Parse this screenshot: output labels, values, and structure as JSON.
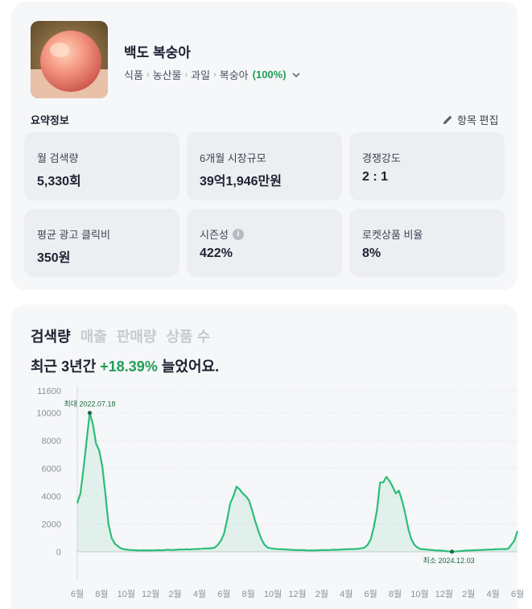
{
  "product": {
    "name": "백도 복숭아",
    "breadcrumb": [
      "식품",
      "농산물",
      "과일",
      "복숭아"
    ],
    "match_percent": "(100%)",
    "image_icon": "peach-photo"
  },
  "summary": {
    "label": "요약정보",
    "edit_label": "항목 편집",
    "metrics": [
      {
        "label": "월 검색량",
        "value": "5,330회"
      },
      {
        "label": "6개월 시장규모",
        "value": "39억1,946만원"
      },
      {
        "label": "경쟁강도",
        "value": "2 : 1"
      },
      {
        "label": "평균 광고 클릭비",
        "value": "350원"
      },
      {
        "label": "시즌성",
        "value": "422%"
      },
      {
        "label": "로켓상품 비율",
        "value": "8%"
      }
    ]
  },
  "trend": {
    "tabs": [
      "검색량",
      "매출",
      "판매량",
      "상품 수"
    ],
    "active_tab": 0,
    "headline_prefix": "최근 3년간 ",
    "headline_value": "+18.39%",
    "headline_suffix": " 늘었어요.",
    "accent_color": "#2dbd7a"
  },
  "chart_data": {
    "type": "area",
    "y_ticks": [
      11600,
      10000,
      8000,
      6000,
      4000,
      2000,
      0
    ],
    "ylim": [
      0,
      11600
    ],
    "x_tick_labels": [
      "6월",
      "8월",
      "10월",
      "12월",
      "2월",
      "4월",
      "6월",
      "8월",
      "10월",
      "12월",
      "2월",
      "4월",
      "6월",
      "8월",
      "10월",
      "12월",
      "2월",
      "4월",
      "6월"
    ],
    "annotations": [
      {
        "label": "최대 2022.07.18",
        "value": 10000
      },
      {
        "label": "최소 2024.12.03",
        "value": 0
      }
    ],
    "values": [
      3500,
      4200,
      6000,
      8000,
      10000,
      9200,
      7800,
      7300,
      6200,
      4200,
      2000,
      1000,
      600,
      400,
      250,
      180,
      150,
      130,
      120,
      110,
      100,
      110,
      100,
      110,
      100,
      110,
      120,
      110,
      120,
      150,
      130,
      140,
      150,
      170,
      160,
      180,
      170,
      190,
      200,
      210,
      220,
      250,
      230,
      260,
      300,
      500,
      800,
      1300,
      2300,
      3500,
      4000,
      4700,
      4500,
      4200,
      4000,
      3700,
      3000,
      2200,
      1500,
      900,
      500,
      300,
      250,
      220,
      200,
      190,
      180,
      170,
      150,
      140,
      130,
      120,
      120,
      110,
      100,
      110,
      100,
      110,
      120,
      130,
      120,
      130,
      150,
      140,
      160,
      170,
      180,
      190,
      200,
      200,
      220,
      250,
      300,
      500,
      900,
      1800,
      3000,
      5000,
      5000,
      5400,
      5100,
      4700,
      4200,
      4400,
      3700,
      2800,
      1700,
      900,
      500,
      300,
      200,
      180,
      160,
      140,
      120,
      100,
      90,
      80,
      50,
      30,
      10,
      20,
      40,
      60,
      80,
      90,
      100,
      110,
      120,
      130,
      140,
      150,
      160,
      170,
      180,
      190,
      200,
      200,
      220,
      500,
      800,
      1500
    ]
  }
}
